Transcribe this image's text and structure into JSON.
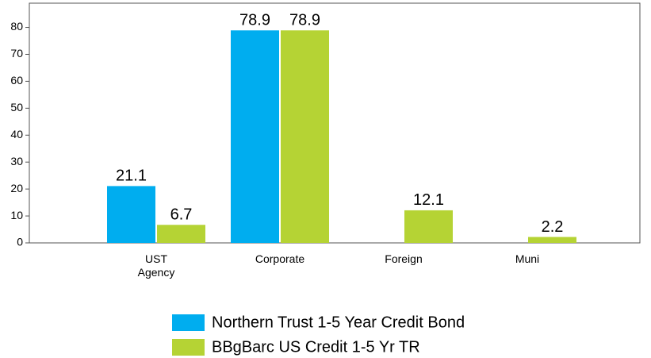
{
  "chart_data": {
    "type": "bar",
    "categories": [
      "UST Agency",
      "Corporate",
      "Foreign",
      "Muni"
    ],
    "series": [
      {
        "name": "Northern Trust 1-5 Year Credit Bond",
        "color": "#00adef",
        "values": [
          21.1,
          78.9,
          null,
          null
        ]
      },
      {
        "name": "BBgBarc US Credit 1-5 Yr TR",
        "color": "#b5d334",
        "values": [
          6.7,
          78.9,
          12.1,
          2.2
        ]
      }
    ],
    "ylim": [
      0,
      89
    ],
    "yticks": [
      0,
      10,
      20,
      30,
      40,
      50,
      60,
      70,
      80
    ],
    "legend": "bottom"
  }
}
